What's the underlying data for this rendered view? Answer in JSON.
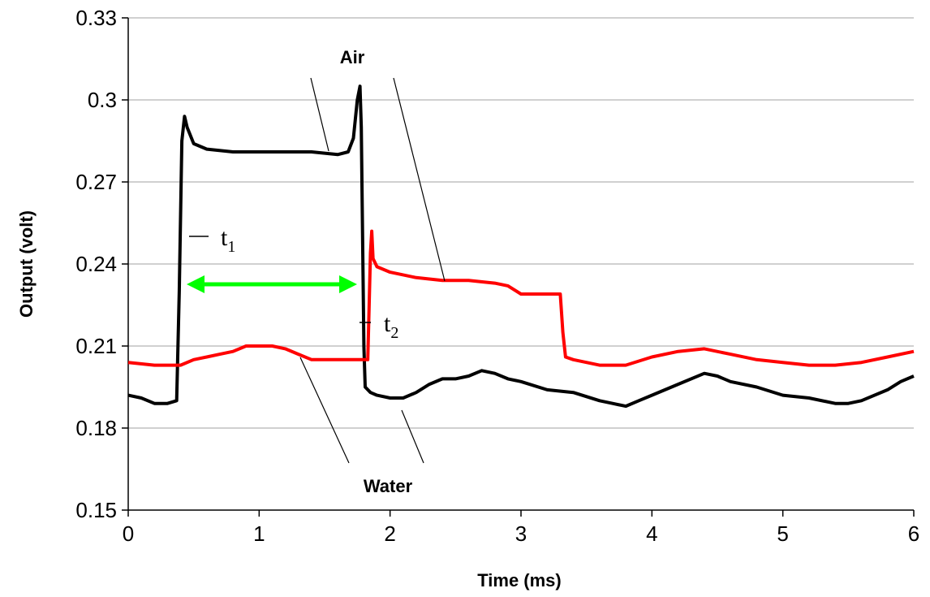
{
  "chart_data": {
    "type": "line",
    "title": "",
    "xlabel": "Time (ms)",
    "ylabel": "Output (volt)",
    "xlim": [
      0,
      6
    ],
    "ylim": [
      0.15,
      0.33
    ],
    "x_ticks": [
      "0",
      "1",
      "2",
      "3",
      "4",
      "5",
      "6"
    ],
    "y_ticks": [
      "0.15",
      "0.18",
      "0.21",
      "0.24",
      "0.27",
      "0.3",
      "0.33"
    ],
    "grid": "horizontal",
    "legend": "none",
    "series": [
      {
        "color": "#000000",
        "points": [
          [
            0,
            0.192
          ],
          [
            0.1,
            0.191
          ],
          [
            0.2,
            0.189
          ],
          [
            0.3,
            0.189
          ],
          [
            0.37,
            0.19
          ],
          [
            0.39,
            0.23
          ],
          [
            0.41,
            0.285
          ],
          [
            0.43,
            0.294
          ],
          [
            0.45,
            0.29
          ],
          [
            0.5,
            0.284
          ],
          [
            0.6,
            0.282
          ],
          [
            0.8,
            0.281
          ],
          [
            1.0,
            0.281
          ],
          [
            1.2,
            0.281
          ],
          [
            1.4,
            0.281
          ],
          [
            1.6,
            0.28
          ],
          [
            1.68,
            0.281
          ],
          [
            1.72,
            0.286
          ],
          [
            1.75,
            0.3
          ],
          [
            1.77,
            0.305
          ],
          [
            1.78,
            0.29
          ],
          [
            1.79,
            0.25
          ],
          [
            1.8,
            0.21
          ],
          [
            1.81,
            0.195
          ],
          [
            1.85,
            0.193
          ],
          [
            1.9,
            0.192
          ],
          [
            2.0,
            0.191
          ],
          [
            2.1,
            0.191
          ],
          [
            2.2,
            0.193
          ],
          [
            2.3,
            0.196
          ],
          [
            2.4,
            0.198
          ],
          [
            2.5,
            0.198
          ],
          [
            2.6,
            0.199
          ],
          [
            2.7,
            0.201
          ],
          [
            2.8,
            0.2
          ],
          [
            2.9,
            0.198
          ],
          [
            3.0,
            0.197
          ],
          [
            3.2,
            0.194
          ],
          [
            3.4,
            0.193
          ],
          [
            3.6,
            0.19
          ],
          [
            3.7,
            0.189
          ],
          [
            3.8,
            0.188
          ],
          [
            3.9,
            0.19
          ],
          [
            4.0,
            0.192
          ],
          [
            4.2,
            0.196
          ],
          [
            4.4,
            0.2
          ],
          [
            4.5,
            0.199
          ],
          [
            4.6,
            0.197
          ],
          [
            4.8,
            0.195
          ],
          [
            5.0,
            0.192
          ],
          [
            5.2,
            0.191
          ],
          [
            5.4,
            0.189
          ],
          [
            5.5,
            0.189
          ],
          [
            5.6,
            0.19
          ],
          [
            5.8,
            0.194
          ],
          [
            5.9,
            0.197
          ],
          [
            6.0,
            0.199
          ]
        ]
      },
      {
        "color": "#ff0000",
        "points": [
          [
            0,
            0.204
          ],
          [
            0.2,
            0.203
          ],
          [
            0.4,
            0.203
          ],
          [
            0.5,
            0.205
          ],
          [
            0.6,
            0.206
          ],
          [
            0.7,
            0.207
          ],
          [
            0.8,
            0.208
          ],
          [
            0.9,
            0.21
          ],
          [
            1.0,
            0.21
          ],
          [
            1.1,
            0.21
          ],
          [
            1.2,
            0.209
          ],
          [
            1.3,
            0.207
          ],
          [
            1.4,
            0.205
          ],
          [
            1.5,
            0.205
          ],
          [
            1.6,
            0.205
          ],
          [
            1.7,
            0.205
          ],
          [
            1.8,
            0.205
          ],
          [
            1.83,
            0.205
          ],
          [
            1.84,
            0.225
          ],
          [
            1.85,
            0.244
          ],
          [
            1.86,
            0.252
          ],
          [
            1.87,
            0.242
          ],
          [
            1.9,
            0.239
          ],
          [
            2.0,
            0.237
          ],
          [
            2.2,
            0.235
          ],
          [
            2.4,
            0.234
          ],
          [
            2.6,
            0.234
          ],
          [
            2.8,
            0.233
          ],
          [
            2.9,
            0.232
          ],
          [
            3.0,
            0.229
          ],
          [
            3.1,
            0.229
          ],
          [
            3.2,
            0.229
          ],
          [
            3.3,
            0.229
          ],
          [
            3.32,
            0.215
          ],
          [
            3.34,
            0.206
          ],
          [
            3.4,
            0.205
          ],
          [
            3.6,
            0.203
          ],
          [
            3.8,
            0.203
          ],
          [
            4.0,
            0.206
          ],
          [
            4.2,
            0.208
          ],
          [
            4.4,
            0.209
          ],
          [
            4.6,
            0.207
          ],
          [
            4.8,
            0.205
          ],
          [
            5.0,
            0.204
          ],
          [
            5.2,
            0.203
          ],
          [
            5.4,
            0.203
          ],
          [
            5.6,
            0.204
          ],
          [
            5.8,
            0.206
          ],
          [
            6.0,
            0.208
          ]
        ]
      }
    ],
    "annotations": {
      "air": "Air",
      "water": "Water",
      "t1": "t",
      "t1_sub": "1",
      "t2": "t",
      "t2_sub": "2"
    }
  }
}
